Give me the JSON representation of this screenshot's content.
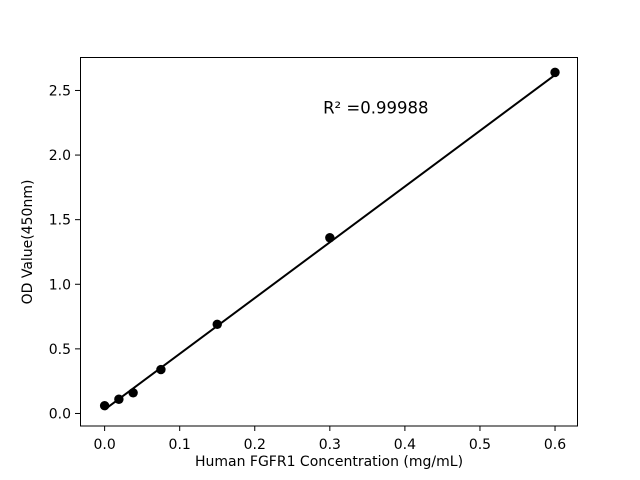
{
  "figure": {
    "background_color": "#ffffff",
    "foreground_color": "#000000"
  },
  "chart_data": {
    "type": "scatter",
    "title": "",
    "xlabel": "Human FGFR1 Concentration (mg/mL)",
    "ylabel": "OD Value(450nm)",
    "annotation": "R² =0.99988",
    "r_squared": 0.99988,
    "x": [
      0,
      0.019,
      0.038,
      0.075,
      0.15,
      0.3,
      0.6
    ],
    "y": [
      0.06,
      0.11,
      0.16,
      0.34,
      0.69,
      1.36,
      2.64
    ],
    "fit_line": {
      "x_start": 0,
      "y_start": 0.03,
      "x_end": 0.6,
      "y_end": 2.62
    },
    "x_ticks": [
      "0.0",
      "0.1",
      "0.2",
      "0.3",
      "0.4",
      "0.5",
      "0.6"
    ],
    "x_tick_values": [
      0.0,
      0.1,
      0.2,
      0.3,
      0.4,
      0.5,
      0.6
    ],
    "y_ticks": [
      "0.0",
      "0.5",
      "1.0",
      "1.5",
      "2.0",
      "2.5"
    ],
    "y_tick_values": [
      0.0,
      0.5,
      1.0,
      1.5,
      2.0,
      2.5
    ],
    "xlim": [
      -0.0328,
      0.6306
    ],
    "ylim": [
      -0.097,
      2.759
    ],
    "annotation_xy": [
      0.291,
      2.37
    ],
    "grid": false,
    "legend": null,
    "marker_color": "#000000",
    "line_color": "#000000"
  }
}
